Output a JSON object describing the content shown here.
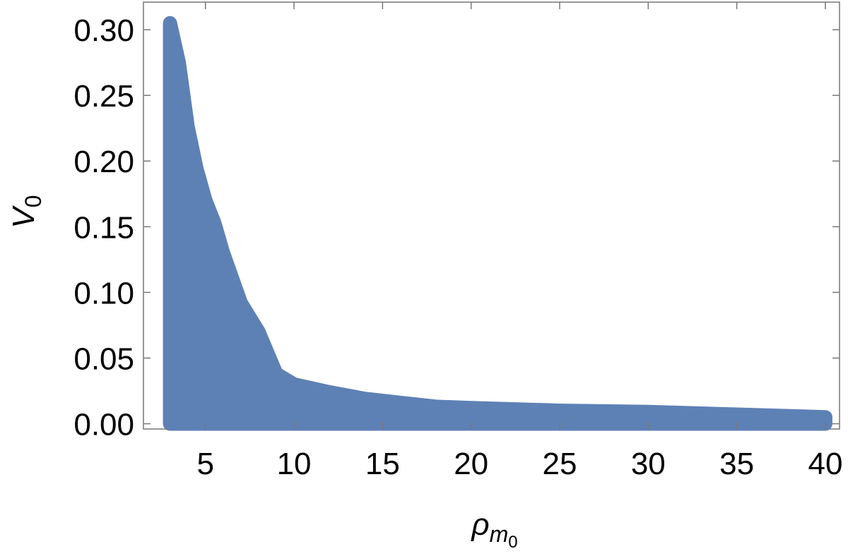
{
  "chart_data": {
    "type": "area",
    "xlabel": {
      "symbol": "ρ",
      "subscript": "m",
      "sub_subscript": "0"
    },
    "ylabel": {
      "symbol": "V",
      "subscript": "0"
    },
    "x": [
      3,
      3.5,
      4,
      4.5,
      5,
      5.5,
      6,
      7,
      8,
      9,
      10,
      12,
      14,
      16,
      18,
      20,
      25,
      30,
      35,
      40
    ],
    "values": [
      0.305,
      0.275,
      0.226,
      0.194,
      0.17,
      0.153,
      0.13,
      0.092,
      0.07,
      0.038,
      0.03,
      0.024,
      0.019,
      0.016,
      0.013,
      0.012,
      0.01,
      0.009,
      0.007,
      0.005
    ],
    "color": "#5e81b5",
    "xlim": [
      1.5,
      40.8
    ],
    "ylim": [
      -0.004,
      0.321
    ],
    "xticks": [
      5,
      10,
      15,
      20,
      25,
      30,
      35,
      40
    ],
    "yticks": [
      {
        "value": 0,
        "label": "0.00"
      },
      {
        "value": 0.05,
        "label": "0.05"
      },
      {
        "value": 0.1,
        "label": "0.10"
      },
      {
        "value": 0.15,
        "label": "0.15"
      },
      {
        "value": 0.2,
        "label": "0.20"
      },
      {
        "value": 0.25,
        "label": "0.25"
      },
      {
        "value": 0.3,
        "label": "0.30"
      }
    ]
  }
}
